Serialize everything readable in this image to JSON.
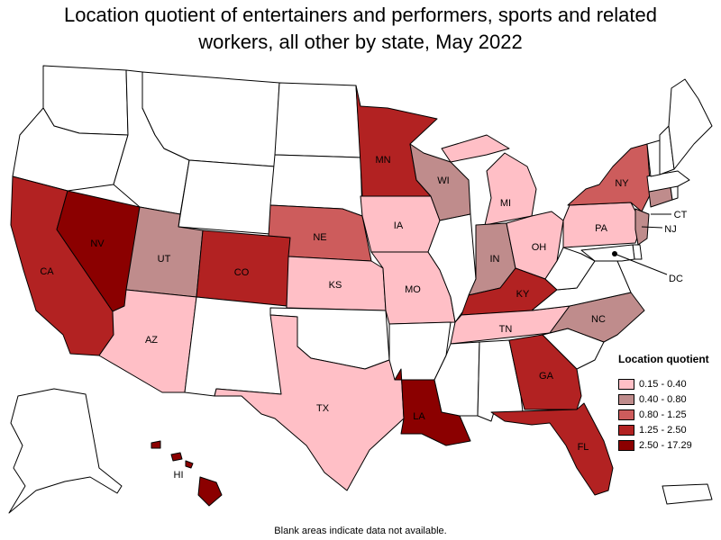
{
  "title": "Location quotient of entertainers and performers, sports and related workers, all other by state, May 2022",
  "footnote": "Blank areas indicate data not available.",
  "legend": {
    "title": "Location quotient",
    "items": [
      {
        "label": "0.15 - 0.40",
        "color": "#ffbfc6"
      },
      {
        "label": "0.40 - 0.80",
        "color": "#bf8c8c"
      },
      {
        "label": "0.80 - 1.25",
        "color": "#cd5c5c"
      },
      {
        "label": "1.25 - 2.50",
        "color": "#b22222"
      },
      {
        "label": "2.50 - 17.29",
        "color": "#8b0000"
      }
    ]
  },
  "no_data_color": "#ffffff",
  "states": [
    {
      "abbr": "WA",
      "bin": null
    },
    {
      "abbr": "OR",
      "bin": null
    },
    {
      "abbr": "CA",
      "bin": 3,
      "label": "CA"
    },
    {
      "abbr": "NV",
      "bin": 4,
      "label": "NV"
    },
    {
      "abbr": "ID",
      "bin": null
    },
    {
      "abbr": "MT",
      "bin": null
    },
    {
      "abbr": "WY",
      "bin": null
    },
    {
      "abbr": "UT",
      "bin": 1,
      "label": "UT"
    },
    {
      "abbr": "AZ",
      "bin": 0,
      "label": "AZ"
    },
    {
      "abbr": "CO",
      "bin": 3,
      "label": "CO"
    },
    {
      "abbr": "NM",
      "bin": null
    },
    {
      "abbr": "ND",
      "bin": null
    },
    {
      "abbr": "SD",
      "bin": null
    },
    {
      "abbr": "NE",
      "bin": 2,
      "label": "NE"
    },
    {
      "abbr": "KS",
      "bin": 0,
      "label": "KS"
    },
    {
      "abbr": "OK",
      "bin": null
    },
    {
      "abbr": "TX",
      "bin": 0,
      "label": "TX"
    },
    {
      "abbr": "MN",
      "bin": 3,
      "label": "MN"
    },
    {
      "abbr": "IA",
      "bin": 0,
      "label": "IA"
    },
    {
      "abbr": "MO",
      "bin": 0,
      "label": "MO"
    },
    {
      "abbr": "AR",
      "bin": null
    },
    {
      "abbr": "LA",
      "bin": 4,
      "label": "LA"
    },
    {
      "abbr": "WI",
      "bin": 1,
      "label": "WI"
    },
    {
      "abbr": "IL",
      "bin": null
    },
    {
      "abbr": "MI",
      "bin": 0,
      "label": "MI"
    },
    {
      "abbr": "IN",
      "bin": 1,
      "label": "IN"
    },
    {
      "abbr": "OH",
      "bin": 0,
      "label": "OH"
    },
    {
      "abbr": "KY",
      "bin": 3,
      "label": "KY"
    },
    {
      "abbr": "TN",
      "bin": 0,
      "label": "TN"
    },
    {
      "abbr": "MS",
      "bin": null
    },
    {
      "abbr": "AL",
      "bin": null
    },
    {
      "abbr": "GA",
      "bin": 3,
      "label": "GA"
    },
    {
      "abbr": "FL",
      "bin": 3,
      "label": "FL"
    },
    {
      "abbr": "SC",
      "bin": null
    },
    {
      "abbr": "NC",
      "bin": 1,
      "label": "NC"
    },
    {
      "abbr": "VA",
      "bin": null
    },
    {
      "abbr": "WV",
      "bin": null
    },
    {
      "abbr": "PA",
      "bin": 0,
      "label": "PA"
    },
    {
      "abbr": "NY",
      "bin": 2,
      "label": "NY"
    },
    {
      "abbr": "NJ",
      "bin": 1,
      "label": "NJ"
    },
    {
      "abbr": "DE",
      "bin": null
    },
    {
      "abbr": "MD",
      "bin": null
    },
    {
      "abbr": "DC",
      "bin": null,
      "label": "DC"
    },
    {
      "abbr": "CT",
      "bin": 1,
      "label": "CT"
    },
    {
      "abbr": "RI",
      "bin": null
    },
    {
      "abbr": "MA",
      "bin": null
    },
    {
      "abbr": "VT",
      "bin": null
    },
    {
      "abbr": "NH",
      "bin": null
    },
    {
      "abbr": "ME",
      "bin": null
    },
    {
      "abbr": "AK",
      "bin": null
    },
    {
      "abbr": "HI",
      "bin": 4,
      "label": "HI"
    },
    {
      "abbr": "PR",
      "bin": null
    }
  ]
}
